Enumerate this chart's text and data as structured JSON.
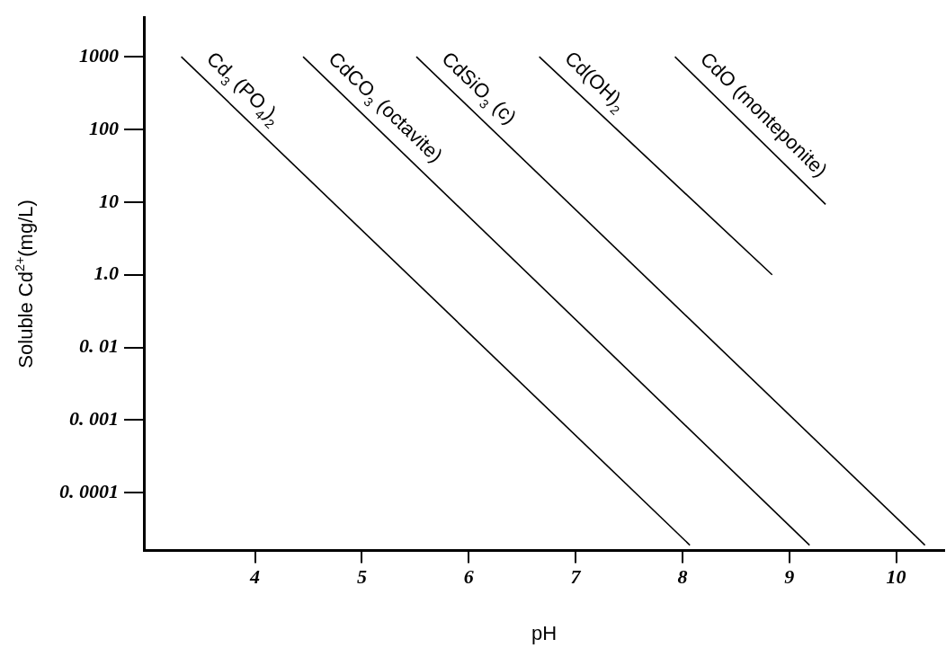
{
  "chart_data": {
    "type": "line",
    "xlabel": "pH",
    "ylabel": "Soluble Cd$^{2+}$(mg/L)",
    "log": "y",
    "grid": false,
    "legend": false,
    "marker": "none",
    "line_style": "solid",
    "xlim": [
      2.96,
      10.45
    ],
    "xticks": [
      4,
      5,
      6,
      7,
      8,
      9,
      10
    ],
    "ylim": [
      0.00016,
      3500
    ],
    "yticks": [
      1000,
      100,
      10,
      {
        "value": 1,
        "label": "1.0"
      },
      {
        "value": 0.1,
        "label": "0. 01"
      },
      {
        "value": 0.01,
        "label": "0. 001"
      },
      {
        "value": 0.001,
        "label": "0. 0001"
      }
    ],
    "series": [
      {
        "name": "Cd$_{3}$ (PO$_{4}$)$_{2}$",
        "color": "#000000",
        "x": [
          3.31,
          8.07
        ],
        "values": [
          1000,
          0.00019
        ]
      },
      {
        "name": "CdCO$_{3}$ (octavite)",
        "color": "#000000",
        "x": [
          4.45,
          9.19
        ],
        "values": [
          1000,
          0.00019
        ]
      },
      {
        "name": "CdSiO$_{3}$ (c)",
        "color": "#000000",
        "x": [
          5.51,
          10.27
        ],
        "values": [
          1000,
          0.00019
        ]
      },
      {
        "name": "Cd(OH)$_{2}$",
        "color": "#000000",
        "x": [
          6.66,
          8.84
        ],
        "values": [
          1000,
          1
        ]
      },
      {
        "name": "CdO (monteponite)",
        "color": "#000000",
        "x": [
          7.93,
          9.34
        ],
        "values": [
          1000,
          9.3
        ]
      }
    ]
  }
}
